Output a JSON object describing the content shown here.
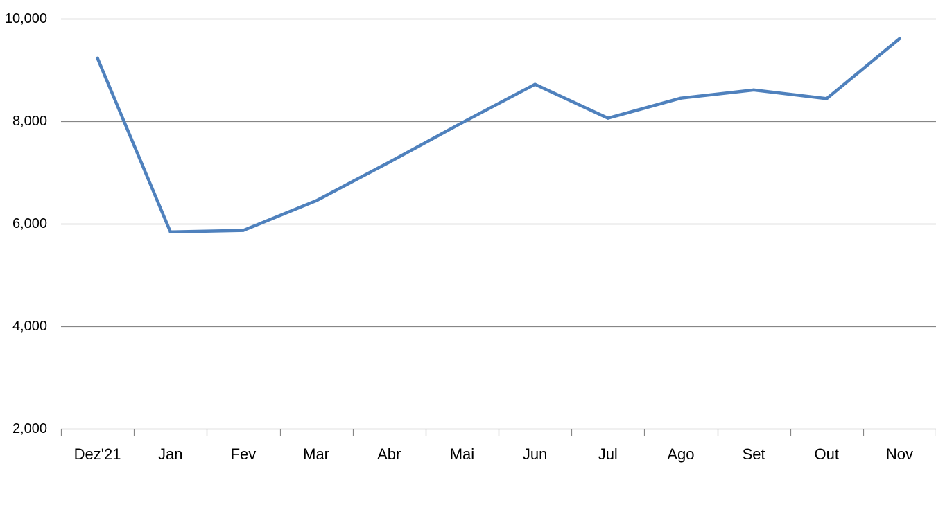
{
  "chart_data": {
    "type": "line",
    "title": "",
    "xlabel": "",
    "ylabel": "",
    "categories": [
      "Dez'21",
      "Jan",
      "Fev",
      "Mar",
      "Abr",
      "Mai",
      "Jun",
      "Jul",
      "Ago",
      "Set",
      "Out",
      "Nov"
    ],
    "series": [
      {
        "values": [
          9230,
          5840,
          5870,
          6450,
          7200,
          7970,
          8720,
          8060,
          8450,
          8610,
          8440,
          9610
        ],
        "color": "#4f81bd"
      }
    ],
    "ylim": [
      2000,
      10000
    ],
    "yticks": [
      2000,
      4000,
      6000,
      8000,
      10000
    ],
    "ytick_labels": [
      "2,000",
      "4,000",
      "6,000",
      "8,000",
      "10,000"
    ],
    "grid": true,
    "grid_color": "#868686",
    "legend": "none"
  }
}
